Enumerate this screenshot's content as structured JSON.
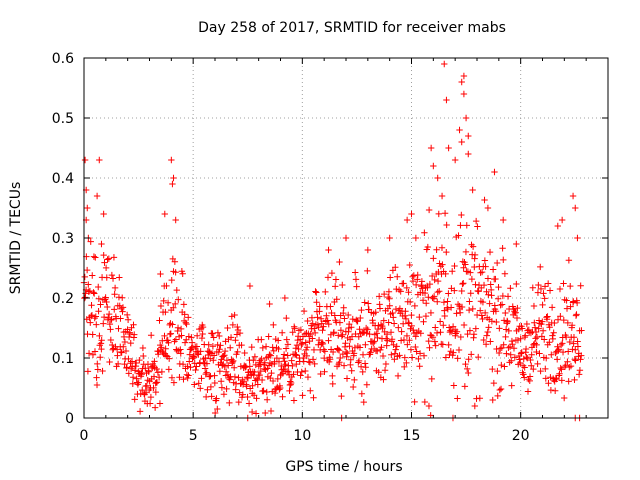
{
  "chart_data": {
    "type": "scatter",
    "title": "Day 258 of 2017, SRMTID for receiver mabs",
    "xlabel": "GPS time / hours",
    "ylabel": "SRMTID / TECUs",
    "xlim": [
      0,
      24
    ],
    "ylim": [
      0,
      0.6
    ],
    "x_ticks": [
      0,
      5,
      10,
      15,
      20
    ],
    "y_ticks": [
      0,
      0.1,
      0.2,
      0.3,
      0.4,
      0.5,
      0.6
    ],
    "x_tick_labels": [
      "0",
      "5",
      "10",
      "15",
      "20"
    ],
    "y_tick_labels": [
      "0",
      "0.1",
      "0.2",
      "0.3",
      "0.4",
      "0.5",
      "0.6"
    ],
    "grid": true,
    "marker": "plus",
    "color": "#ff0000",
    "series": [
      {
        "name": "SRMTID",
        "profile_x": [
          0.0,
          0.5,
          1.0,
          1.5,
          2.0,
          2.5,
          3.0,
          3.5,
          4.0,
          4.5,
          5.0,
          5.5,
          6.0,
          6.5,
          7.0,
          7.5,
          8.0,
          8.5,
          9.0,
          9.5,
          10.0,
          10.5,
          11.0,
          11.5,
          12.0,
          12.5,
          13.0,
          13.5,
          14.0,
          14.5,
          15.0,
          15.5,
          16.0,
          16.5,
          17.0,
          17.5,
          18.0,
          18.5,
          19.0,
          19.5,
          20.0,
          20.5,
          21.0,
          21.5,
          22.0,
          22.5
        ],
        "profile_center": [
          0.2,
          0.17,
          0.19,
          0.17,
          0.11,
          0.07,
          0.07,
          0.09,
          0.17,
          0.14,
          0.11,
          0.1,
          0.09,
          0.1,
          0.1,
          0.07,
          0.07,
          0.09,
          0.09,
          0.1,
          0.11,
          0.12,
          0.13,
          0.14,
          0.13,
          0.13,
          0.13,
          0.14,
          0.15,
          0.16,
          0.17,
          0.18,
          0.19,
          0.2,
          0.21,
          0.2,
          0.19,
          0.18,
          0.16,
          0.15,
          0.11,
          0.12,
          0.15,
          0.14,
          0.13,
          0.15
        ],
        "profile_spread": [
          0.08,
          0.07,
          0.08,
          0.07,
          0.05,
          0.04,
          0.04,
          0.05,
          0.08,
          0.06,
          0.05,
          0.05,
          0.05,
          0.05,
          0.05,
          0.04,
          0.04,
          0.05,
          0.05,
          0.05,
          0.05,
          0.06,
          0.06,
          0.06,
          0.06,
          0.06,
          0.06,
          0.06,
          0.07,
          0.07,
          0.08,
          0.09,
          0.1,
          0.11,
          0.11,
          0.1,
          0.1,
          0.09,
          0.08,
          0.08,
          0.06,
          0.06,
          0.07,
          0.07,
          0.07,
          0.07
        ],
        "extra_points": [
          [
            0.05,
            0.43
          ],
          [
            0.1,
            0.38
          ],
          [
            0.15,
            0.35
          ],
          [
            0.1,
            0.33
          ],
          [
            0.2,
            0.3
          ],
          [
            0.6,
            0.37
          ],
          [
            0.7,
            0.43
          ],
          [
            0.9,
            0.34
          ],
          [
            0.8,
            0.29
          ],
          [
            3.5,
            0.24
          ],
          [
            3.7,
            0.34
          ],
          [
            4.0,
            0.43
          ],
          [
            4.1,
            0.4
          ],
          [
            4.05,
            0.39
          ],
          [
            4.2,
            0.33
          ],
          [
            7.6,
            0.22
          ],
          [
            7.5,
            0.0
          ],
          [
            7.7,
            0.01
          ],
          [
            8.5,
            0.19
          ],
          [
            9.2,
            0.2
          ],
          [
            11.2,
            0.28
          ],
          [
            11.7,
            0.26
          ],
          [
            11.8,
            0.0
          ],
          [
            12.0,
            0.3
          ],
          [
            13.0,
            0.28
          ],
          [
            14.0,
            0.3
          ],
          [
            14.8,
            0.33
          ],
          [
            15.0,
            0.34
          ],
          [
            15.2,
            0.3
          ],
          [
            15.9,
            0.45
          ],
          [
            16.0,
            0.42
          ],
          [
            16.2,
            0.4
          ],
          [
            16.4,
            0.37
          ],
          [
            16.5,
            0.59
          ],
          [
            16.6,
            0.53
          ],
          [
            16.7,
            0.45
          ],
          [
            17.0,
            0.43
          ],
          [
            17.2,
            0.48
          ],
          [
            17.3,
            0.56
          ],
          [
            17.4,
            0.57
          ],
          [
            17.4,
            0.54
          ],
          [
            17.5,
            0.5
          ],
          [
            17.6,
            0.47
          ],
          [
            17.3,
            0.46
          ],
          [
            17.6,
            0.44
          ],
          [
            17.8,
            0.38
          ],
          [
            18.5,
            0.35
          ],
          [
            18.8,
            0.41
          ],
          [
            19.2,
            0.33
          ],
          [
            19.8,
            0.29
          ],
          [
            17.9,
            0.02
          ],
          [
            16.9,
            0.0
          ],
          [
            15.8,
            0.02
          ],
          [
            22.4,
            0.37
          ],
          [
            22.5,
            0.35
          ],
          [
            22.6,
            0.3
          ],
          [
            22.5,
            0.0
          ],
          [
            22.7,
            0.0
          ],
          [
            21.7,
            0.32
          ],
          [
            21.9,
            0.33
          ]
        ]
      }
    ]
  }
}
